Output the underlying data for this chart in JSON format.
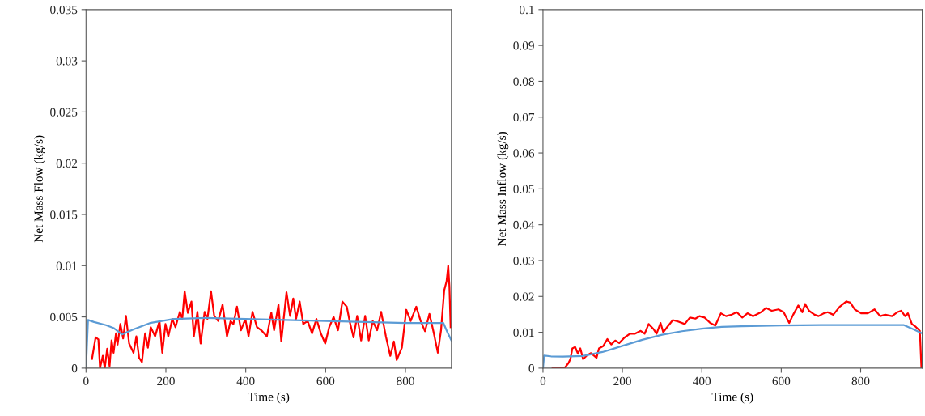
{
  "chart_data": [
    {
      "type": "line",
      "xlabel": "Time (s)",
      "ylabel": "Net Mass Flow (kg/s)",
      "xlim": [
        0,
        915
      ],
      "xticks": [
        0,
        200,
        400,
        600,
        800
      ],
      "ylim": [
        0,
        0.035
      ],
      "yticks": [
        0,
        0.005,
        0.01,
        0.015,
        0.02,
        0.025,
        0.03,
        0.035
      ],
      "grid": false,
      "marker": "none",
      "line_style": "solid",
      "series": [
        {
          "color": "#ff0000",
          "x": [
            15,
            24,
            31,
            35,
            42,
            47,
            53,
            59,
            64,
            69,
            75,
            79,
            86,
            93,
            100,
            108,
            119,
            126,
            133,
            140,
            148,
            155,
            162,
            173,
            184,
            191,
            199,
            206,
            216,
            224,
            235,
            241,
            247,
            255,
            264,
            270,
            279,
            287,
            297,
            304,
            313,
            321,
            331,
            342,
            353,
            362,
            369,
            378,
            388,
            399,
            407,
            417,
            428,
            439,
            453,
            464,
            471,
            482,
            489,
            502,
            511,
            519,
            526,
            535,
            544,
            555,
            566,
            577,
            588,
            599,
            609,
            620,
            631,
            642,
            653,
            660,
            670,
            679,
            689,
            699,
            708,
            718,
            729,
            739,
            751,
            762,
            771,
            778,
            791,
            802,
            813,
            827,
            838,
            849,
            860,
            871,
            881,
            889,
            897,
            903,
            907,
            910,
            913
          ],
          "values": [
            0.0009,
            0.003,
            0.0028,
            0,
            0.0012,
            0,
            0.0019,
            0.0002,
            0.0027,
            0.0015,
            0.0034,
            0.0023,
            0.0043,
            0.0029,
            0.0051,
            0.0024,
            0.0015,
            0.0031,
            0.001,
            0.0006,
            0.0034,
            0.002,
            0.004,
            0.0031,
            0.0046,
            0.0015,
            0.0043,
            0.0031,
            0.0048,
            0.004,
            0.0055,
            0.0048,
            0.0075,
            0.0054,
            0.0065,
            0.0031,
            0.0055,
            0.0024,
            0.0055,
            0.0048,
            0.0075,
            0.0051,
            0.0046,
            0.0062,
            0.0031,
            0.0046,
            0.0043,
            0.006,
            0.0037,
            0.0048,
            0.0031,
            0.0055,
            0.004,
            0.0037,
            0.0031,
            0.0054,
            0.0037,
            0.0062,
            0.0026,
            0.0074,
            0.0051,
            0.0068,
            0.0048,
            0.0065,
            0.0043,
            0.0046,
            0.0034,
            0.0048,
            0.0034,
            0.0024,
            0.004,
            0.005,
            0.0037,
            0.0065,
            0.006,
            0.0046,
            0.003,
            0.0051,
            0.0027,
            0.0051,
            0.0027,
            0.0046,
            0.0037,
            0.0055,
            0.0031,
            0.0012,
            0.0026,
            0.0008,
            0.002,
            0.0057,
            0.0046,
            0.006,
            0.0046,
            0.0036,
            0.0053,
            0.0034,
            0.0015,
            0.0037,
            0.0076,
            0.0085,
            0.01,
            0.008,
            0.004
          ]
        },
        {
          "color": "#5b9bd5",
          "x": [
            0,
            5,
            20,
            50,
            70,
            90,
            120,
            160,
            220,
            300,
            400,
            500,
            600,
            700,
            800,
            895,
            905,
            915
          ],
          "values": [
            0,
            0.0047,
            0.0045,
            0.0042,
            0.0039,
            0.0033,
            0.0038,
            0.0044,
            0.0048,
            0.0049,
            0.0048,
            0.0047,
            0.0046,
            0.0045,
            0.0044,
            0.0044,
            0.0035,
            0.0027
          ]
        }
      ]
    },
    {
      "type": "line",
      "xlabel": "Time (s)",
      "ylabel": "Net Mass Inflow (kg/s)",
      "xlim": [
        0,
        955
      ],
      "xticks": [
        0,
        200,
        400,
        600,
        800
      ],
      "ylim": [
        0,
        0.1
      ],
      "yticks": [
        0,
        0.01,
        0.02,
        0.03,
        0.04,
        0.05,
        0.06,
        0.07,
        0.08,
        0.09,
        0.1
      ],
      "grid": false,
      "marker": "none",
      "line_style": "solid",
      "series": [
        {
          "color": "#ff0000",
          "x": [
            24,
            54,
            64,
            69,
            74,
            81,
            88,
            94,
            101,
            111,
            121,
            135,
            141,
            152,
            162,
            172,
            182,
            192,
            205,
            219,
            232,
            246,
            256,
            266,
            279,
            286,
            296,
            303,
            313,
            327,
            340,
            357,
            370,
            384,
            394,
            407,
            421,
            434,
            448,
            461,
            475,
            488,
            502,
            515,
            529,
            549,
            562,
            576,
            593,
            606,
            620,
            630,
            643,
            653,
            660,
            670,
            684,
            694,
            707,
            717,
            731,
            747,
            764,
            774,
            785,
            801,
            818,
            835,
            849,
            862,
            879,
            892,
            902,
            912,
            919,
            929,
            939,
            949,
            953
          ],
          "values": [
            0,
            0,
            0.0014,
            0.0025,
            0.0055,
            0.0059,
            0.004,
            0.0055,
            0.0025,
            0.0036,
            0.0042,
            0.0029,
            0.0055,
            0.0062,
            0.0081,
            0.0066,
            0.0077,
            0.007,
            0.0085,
            0.0096,
            0.0096,
            0.0104,
            0.0096,
            0.0123,
            0.0108,
            0.0096,
            0.0126,
            0.01,
            0.0115,
            0.0134,
            0.013,
            0.0123,
            0.0141,
            0.0138,
            0.0145,
            0.0141,
            0.0126,
            0.0119,
            0.0153,
            0.0145,
            0.0149,
            0.0156,
            0.0141,
            0.0153,
            0.0145,
            0.0156,
            0.0168,
            0.016,
            0.0164,
            0.0156,
            0.0126,
            0.0149,
            0.0175,
            0.0156,
            0.0179,
            0.016,
            0.0149,
            0.0145,
            0.0153,
            0.0156,
            0.0149,
            0.0171,
            0.0186,
            0.0183,
            0.0164,
            0.0153,
            0.0153,
            0.0164,
            0.0145,
            0.0149,
            0.0145,
            0.0156,
            0.016,
            0.0145,
            0.0153,
            0.0123,
            0.0115,
            0.0104,
            0
          ]
        },
        {
          "color": "#5b9bd5",
          "x": [
            0,
            3,
            20,
            50,
            100,
            150,
            200,
            250,
            300,
            350,
            400,
            450,
            500,
            600,
            700,
            800,
            909,
            930,
            953
          ],
          "values": [
            0,
            0.0035,
            0.0033,
            0.0032,
            0.0034,
            0.0045,
            0.0062,
            0.0079,
            0.0093,
            0.0103,
            0.011,
            0.0115,
            0.0117,
            0.0119,
            0.012,
            0.012,
            0.012,
            0.011,
            0.0098
          ]
        }
      ]
    }
  ]
}
